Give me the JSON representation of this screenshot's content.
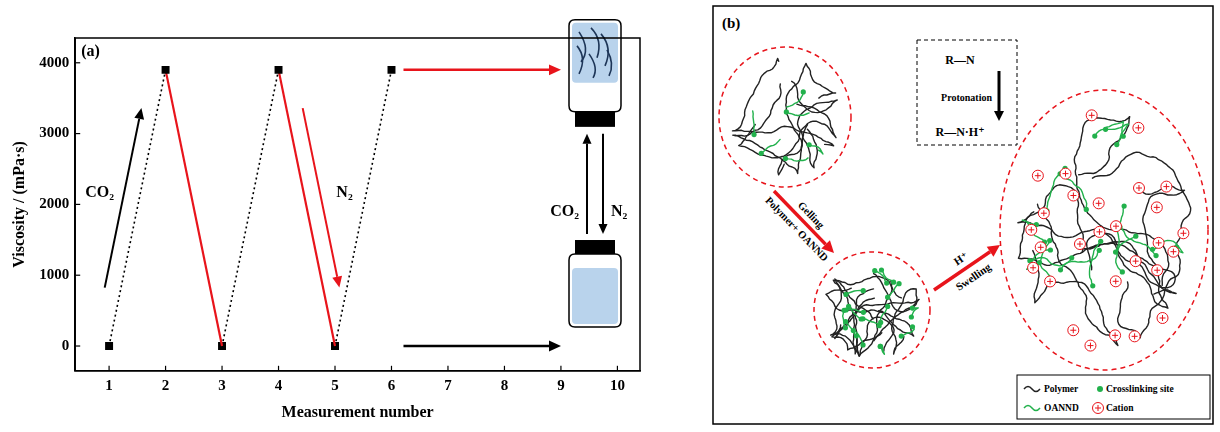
{
  "chart_data": {
    "type": "line",
    "panel_label": "(a)",
    "x_label": "Measurement number",
    "y_label": "Viscosity / (mPa·s)",
    "xlim": [
      0.4,
      10.4
    ],
    "xticks": [
      1,
      2,
      3,
      4,
      5,
      6,
      7,
      8,
      9,
      10
    ],
    "ylim": [
      -350,
      4350
    ],
    "yticks": [
      0,
      1000,
      2000,
      3000,
      4000
    ],
    "grid": false,
    "series": [
      {
        "color": "#000000",
        "line_style": "dotted",
        "marker": "square",
        "x": [
          1,
          2
        ],
        "values": [
          0,
          3900
        ]
      },
      {
        "color": "#e8141b",
        "line_style": "solid",
        "marker": "none",
        "x": [
          2,
          3
        ],
        "values": [
          3900,
          0
        ]
      },
      {
        "color": "#000000",
        "line_style": "dotted",
        "marker": "square",
        "x": [
          3,
          4
        ],
        "values": [
          0,
          3900
        ]
      },
      {
        "color": "#e8141b",
        "line_style": "solid",
        "marker": "none",
        "x": [
          4,
          5
        ],
        "values": [
          3900,
          0
        ]
      },
      {
        "color": "#000000",
        "line_style": "dotted",
        "marker": "square",
        "x": [
          5,
          6
        ],
        "values": [
          0,
          3900
        ]
      }
    ],
    "annotations": [
      "CO₂",
      "N₂",
      "CO₂",
      "N₂"
    ]
  },
  "diagram": {
    "panel_label": "(b)",
    "gelling_arrow": {
      "left": "Polymer+ OANND",
      "right": "Gelling"
    },
    "swelling_arrow": {
      "above": "H⁺",
      "below": "Swelling"
    },
    "protonation": {
      "before": "R—N",
      "label": "Protonation",
      "after": "R—N·H⁺"
    },
    "legend_items": [
      "Polymer",
      "Crosslinking site",
      "OANND",
      "Cation"
    ]
  }
}
